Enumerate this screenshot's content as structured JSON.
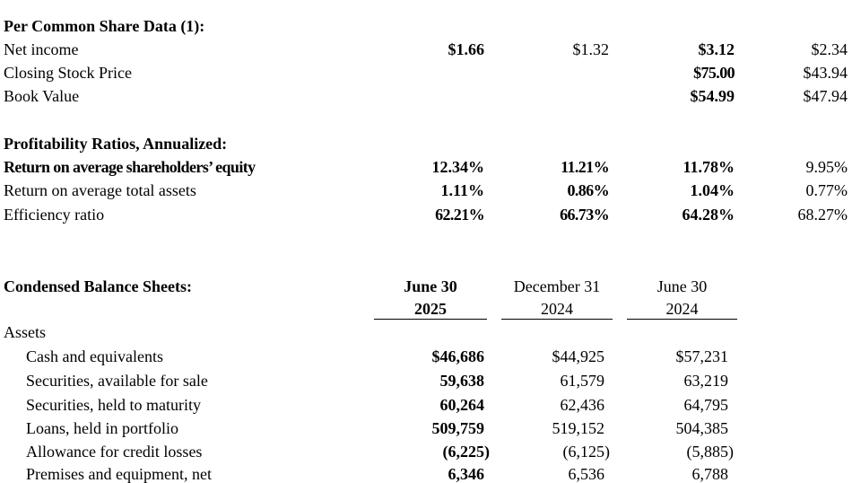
{
  "per_share": {
    "heading": "Per Common Share Data (1):",
    "rows": [
      {
        "label": "Net income",
        "c1": "$1.66",
        "c2": "$1.32",
        "c3": "$3.12",
        "c4": "$2.34"
      },
      {
        "label": "Closing Stock Price",
        "c1": "",
        "c2": "",
        "c3": "$75.00",
        "c4": "$43.94"
      },
      {
        "label": "Book Value",
        "c1": "",
        "c2": "",
        "c3": "$54.99",
        "c4": "$47.94"
      }
    ]
  },
  "profitability": {
    "heading": "Profitability Ratios, Annualized:",
    "rows": [
      {
        "label": "Return on average shareholders’ equity",
        "c1": "12.34%",
        "c2": "11.21%",
        "c3": "11.78%",
        "c4": "9.95%"
      },
      {
        "label": "Return on average total assets",
        "c1": "1.11%",
        "c2": "0.86%",
        "c3": "1.04%",
        "c4": "0.77%"
      },
      {
        "label": "Efficiency ratio",
        "c1": "62.21%",
        "c2": "66.73%",
        "c3": "64.28%",
        "c4": "68.27%"
      }
    ]
  },
  "balance": {
    "heading": "Condensed Balance Sheets:",
    "columns": [
      {
        "line1": "June 30",
        "line2": "2025"
      },
      {
        "line1": "December 31",
        "line2": "2024"
      },
      {
        "line1": "June 30",
        "line2": "2024"
      }
    ],
    "section_label": "Assets",
    "rows": [
      {
        "label": "Cash and equivalents",
        "c1": "$46,686",
        "c2": "$44,925",
        "c3": "$57,231"
      },
      {
        "label": "Securities, available for sale",
        "c1": "59,638",
        "c2": "61,579",
        "c3": "63,219"
      },
      {
        "label": "Securities, held to maturity",
        "c1": "60,264",
        "c2": "62,436",
        "c3": "64,795"
      },
      {
        "label": "Loans, held in portfolio",
        "c1": "509,759",
        "c2": "519,152",
        "c3": "504,385"
      },
      {
        "label": "Allowance for credit losses",
        "c1": "(6,225)",
        "c2": "(6,125)",
        "c3": "(5,885)"
      },
      {
        "label": "Premises and equipment, net",
        "c1": "6,346",
        "c2": "6,536",
        "c3": "6,788"
      }
    ]
  }
}
